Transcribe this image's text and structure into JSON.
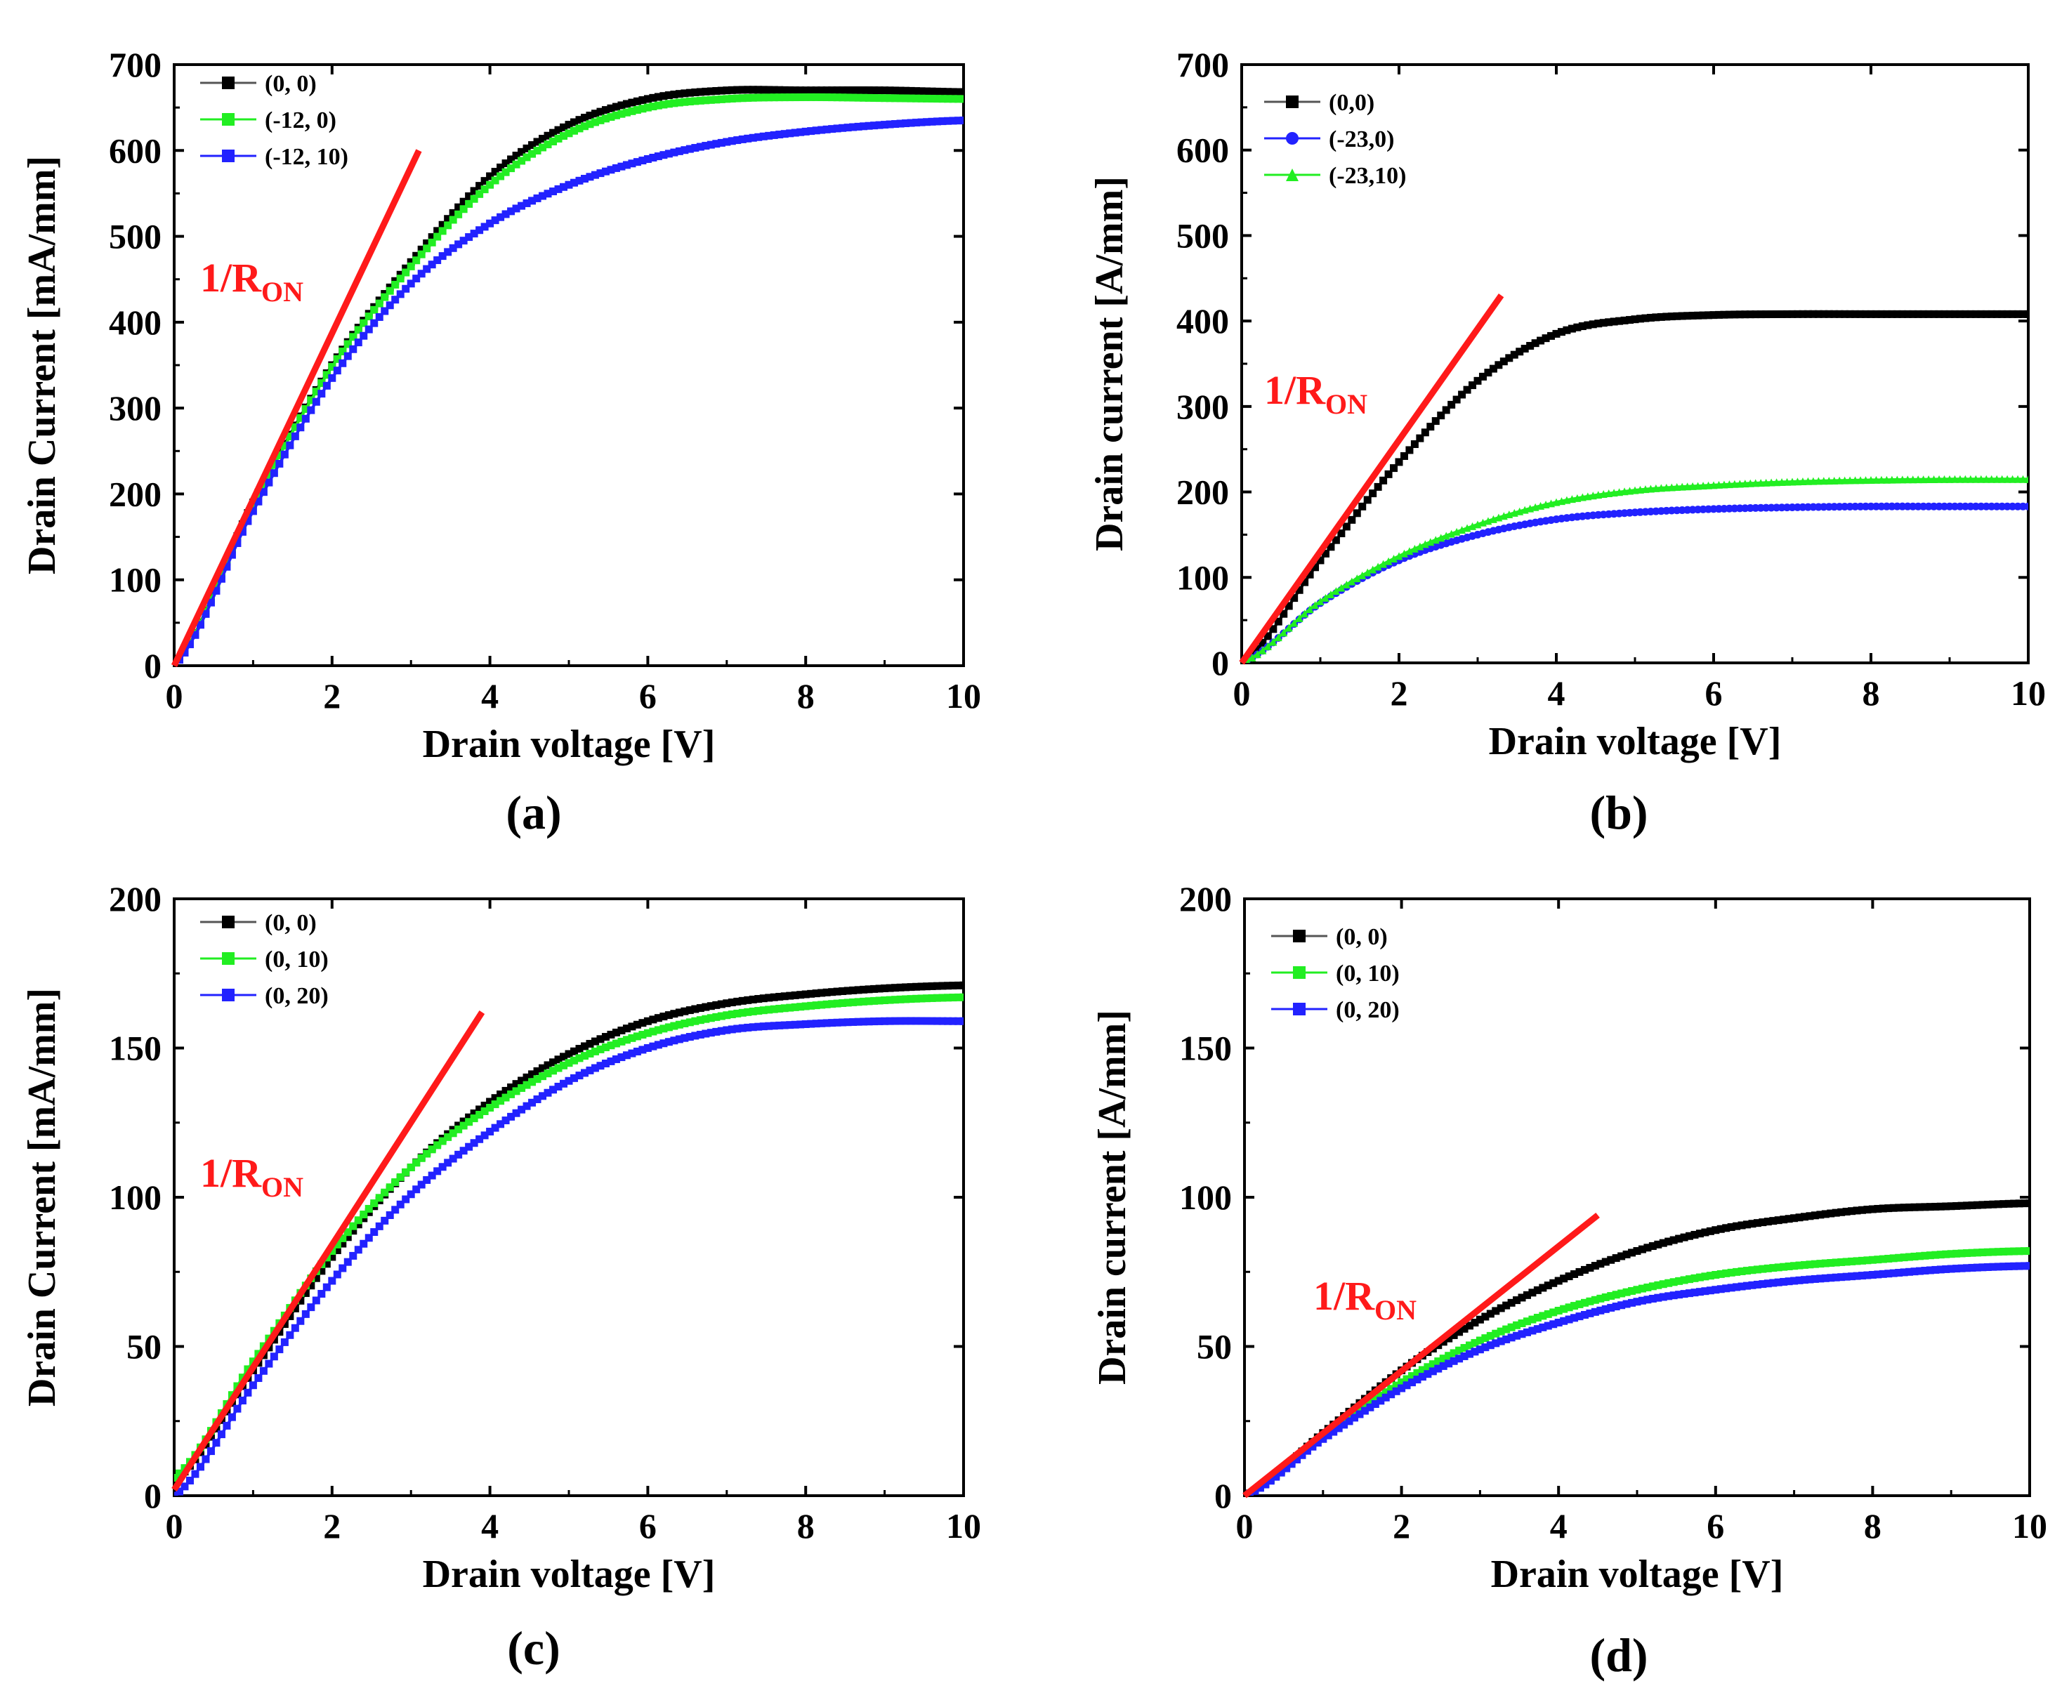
{
  "figure": {
    "colors": {
      "black": "#000000",
      "green": "#22ee22",
      "blue": "#2222ff",
      "red": "#ff1a1a"
    }
  },
  "chart_data": [
    {
      "type": "line",
      "panel": "(a)",
      "xlabel": "Drain voltage [V]",
      "ylabel": "Drain Current [mA/mm]",
      "xlim": [
        0,
        10
      ],
      "ylim": [
        0,
        700
      ],
      "xticks": [
        0,
        2,
        4,
        6,
        8,
        10
      ],
      "yticks": [
        0,
        100,
        200,
        300,
        400,
        500,
        600,
        700
      ],
      "legend_position": "top-left",
      "annotation": {
        "text": "1/R",
        "subscript": "ON",
        "color": "#ff1a1a"
      },
      "fit_line": {
        "from": [
          0,
          0
        ],
        "to": [
          3.1,
          600
        ],
        "color": "#ff1a1a"
      },
      "series": [
        {
          "name": "(0, 0)",
          "marker": "square",
          "color": "#000000",
          "x": [
            0,
            1,
            2,
            3,
            4,
            5,
            6,
            7,
            8,
            9,
            10
          ],
          "values": [
            0,
            190,
            350,
            470,
            570,
            630,
            660,
            670,
            670,
            670,
            668
          ]
        },
        {
          "name": "(-12, 0)",
          "marker": "square",
          "color": "#22ee22",
          "x": [
            0,
            1,
            2,
            3,
            4,
            5,
            6,
            7,
            8,
            9,
            10
          ],
          "values": [
            0,
            188,
            348,
            465,
            560,
            620,
            650,
            660,
            662,
            661,
            660
          ]
        },
        {
          "name": "(-12, 10)",
          "marker": "square",
          "color": "#2222ff",
          "x": [
            0,
            1,
            2,
            3,
            4,
            5,
            6,
            7,
            8,
            9,
            10
          ],
          "values": [
            0,
            180,
            335,
            445,
            515,
            560,
            590,
            610,
            622,
            630,
            635
          ]
        }
      ]
    },
    {
      "type": "line",
      "panel": "(b)",
      "xlabel": "Drain voltage [V]",
      "ylabel": "Drain current [A/mm]",
      "xlim": [
        0,
        10
      ],
      "ylim": [
        0,
        700
      ],
      "xticks": [
        0,
        2,
        4,
        6,
        8,
        10
      ],
      "yticks": [
        0,
        100,
        200,
        300,
        400,
        500,
        600,
        700
      ],
      "legend_position": "top-left",
      "annotation": {
        "text": "1/R",
        "subscript": "ON",
        "color": "#ff1a1a"
      },
      "fit_line": {
        "from": [
          0,
          0
        ],
        "to": [
          3.3,
          430
        ],
        "color": "#ff1a1a"
      },
      "series": [
        {
          "name": "(0,0)",
          "marker": "square",
          "color": "#000000",
          "x": [
            0,
            1,
            2,
            3,
            4,
            5,
            6,
            7,
            8,
            9,
            10
          ],
          "values": [
            0,
            120,
            235,
            330,
            385,
            402,
            407,
            408,
            408,
            408,
            408
          ]
        },
        {
          "name": "(-23,0)",
          "marker": "circle",
          "color": "#2222ff",
          "x": [
            0,
            1,
            2,
            3,
            4,
            5,
            6,
            7,
            8,
            9,
            10
          ],
          "values": [
            0,
            70,
            120,
            150,
            168,
            176,
            180,
            182,
            183,
            183,
            183
          ]
        },
        {
          "name": "(-23,10)",
          "marker": "triangle",
          "color": "#22ee22",
          "x": [
            0,
            1,
            2,
            3,
            4,
            5,
            6,
            7,
            8,
            9,
            10
          ],
          "values": [
            0,
            72,
            125,
            162,
            188,
            202,
            208,
            212,
            214,
            215,
            215
          ]
        }
      ]
    },
    {
      "type": "line",
      "panel": "(c)",
      "xlabel": "Drain voltage [V]",
      "ylabel": "Drain Current [mA/mm]",
      "xlim": [
        0,
        10
      ],
      "ylim": [
        0,
        200
      ],
      "xticks": [
        0,
        2,
        4,
        6,
        8,
        10
      ],
      "yticks": [
        0,
        50,
        100,
        150,
        200
      ],
      "legend_position": "top-left",
      "annotation": {
        "text": "1/R",
        "subscript": "ON",
        "color": "#ff1a1a"
      },
      "fit_line": {
        "from": [
          0,
          2
        ],
        "to": [
          3.9,
          162
        ],
        "color": "#ff1a1a"
      },
      "series": [
        {
          "name": "(0, 0)",
          "marker": "square",
          "color": "#000000",
          "x": [
            0,
            1,
            2,
            3,
            4,
            5,
            6,
            7,
            8,
            9,
            10
          ],
          "values": [
            5,
            42,
            80,
            110,
            132,
            148,
            159,
            165,
            168,
            170,
            171
          ]
        },
        {
          "name": "(0, 10)",
          "marker": "square",
          "color": "#22ee22",
          "x": [
            0,
            1,
            2,
            3,
            4,
            5,
            6,
            7,
            8,
            9,
            10
          ],
          "values": [
            6,
            45,
            82,
            110,
            130,
            145,
            155,
            161,
            164,
            166,
            167
          ]
        },
        {
          "name": "(0, 20)",
          "marker": "square",
          "color": "#2222ff",
          "x": [
            0,
            1,
            2,
            3,
            4,
            5,
            6,
            7,
            8,
            9,
            10
          ],
          "values": [
            0,
            37,
            72,
            101,
            122,
            139,
            150,
            156,
            158,
            159,
            159
          ]
        }
      ]
    },
    {
      "type": "line",
      "panel": "(d)",
      "xlabel": "Drain voltage [V]",
      "ylabel": "Drain current [A/mm]",
      "xlim": [
        0,
        10
      ],
      "ylim": [
        0,
        200
      ],
      "xticks": [
        0,
        2,
        4,
        6,
        8,
        10
      ],
      "yticks": [
        0,
        50,
        100,
        150,
        200
      ],
      "legend_position": "top-left",
      "annotation": {
        "text": "1/R",
        "subscript": "ON",
        "color": "#ff1a1a"
      },
      "fit_line": {
        "from": [
          0,
          0
        ],
        "to": [
          4.5,
          94
        ],
        "color": "#ff1a1a"
      },
      "series": [
        {
          "name": "(0, 0)",
          "marker": "square",
          "color": "#000000",
          "x": [
            0,
            1,
            2,
            3,
            4,
            5,
            6,
            7,
            8,
            9,
            10
          ],
          "values": [
            0,
            21,
            42,
            59,
            72,
            82,
            89,
            93,
            96,
            97,
            98
          ]
        },
        {
          "name": "(0, 10)",
          "marker": "square",
          "color": "#22ee22",
          "x": [
            0,
            1,
            2,
            3,
            4,
            5,
            6,
            7,
            8,
            9,
            10
          ],
          "values": [
            0,
            20,
            38,
            52,
            62,
            69,
            74,
            77,
            79,
            81,
            82
          ]
        },
        {
          "name": "(0, 20)",
          "marker": "square",
          "color": "#2222ff",
          "x": [
            0,
            1,
            2,
            3,
            4,
            5,
            6,
            7,
            8,
            9,
            10
          ],
          "values": [
            0,
            19,
            36,
            49,
            58,
            65,
            69,
            72,
            74,
            76,
            77
          ]
        }
      ]
    }
  ]
}
